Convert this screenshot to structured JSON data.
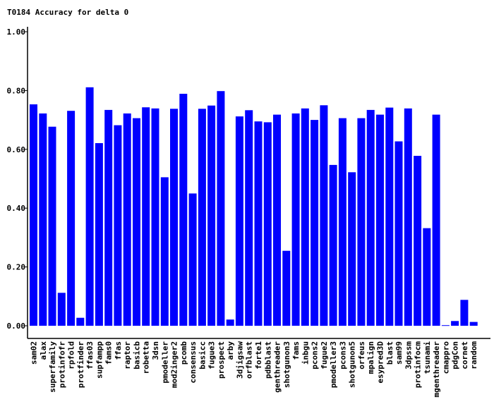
{
  "chart_data": {
    "type": "bar",
    "title": "T0184 Accuracy for delta 0",
    "xlabel": "",
    "ylabel": "",
    "ylim": [
      0,
      1.0
    ],
    "yticks": [
      "0.00",
      "0.20",
      "0.40",
      "0.60",
      "0.80",
      "1.00"
    ],
    "grid": false,
    "legend": "none",
    "bar_color": "#0000ff",
    "categories": [
      "sam02",
      "alax",
      "superfamily",
      "protinfofr",
      "rpfold",
      "protfinder",
      "ffas03",
      "supfampp",
      "fams0",
      "ffas",
      "raptor",
      "basicb",
      "robetta",
      "3dsn",
      "pmodeller",
      "mod2inger2",
      "pcomb",
      "consensus",
      "basicc",
      "fugue3",
      "prospect",
      "arby",
      "3djigsaw",
      "orfblast",
      "forte1",
      "pdbblast",
      "genthreader",
      "shotgunon3",
      "fams",
      "inbgu",
      "pcons2",
      "fugue2",
      "pmodeller3",
      "pcons3",
      "shotgunon5",
      "orfeus",
      "mpalign",
      "esypred3D",
      "blast",
      "sam99",
      "3dpssm",
      "protinfocm",
      "tsunami",
      "mgenthreader",
      "cmappro",
      "pdgCon",
      "cornet",
      "random"
    ],
    "values": [
      0.753,
      0.722,
      0.677,
      0.112,
      0.731,
      0.027,
      0.811,
      0.621,
      0.734,
      0.682,
      0.722,
      0.706,
      0.743,
      0.739,
      0.505,
      0.738,
      0.789,
      0.45,
      0.738,
      0.749,
      0.798,
      0.021,
      0.712,
      0.733,
      0.695,
      0.692,
      0.718,
      0.255,
      0.722,
      0.739,
      0.7,
      0.75,
      0.547,
      0.706,
      0.522,
      0.706,
      0.734,
      0.718,
      0.742,
      0.627,
      0.739,
      0.578,
      0.332,
      0.718,
      0.002,
      0.016,
      0.088,
      0.013
    ]
  }
}
